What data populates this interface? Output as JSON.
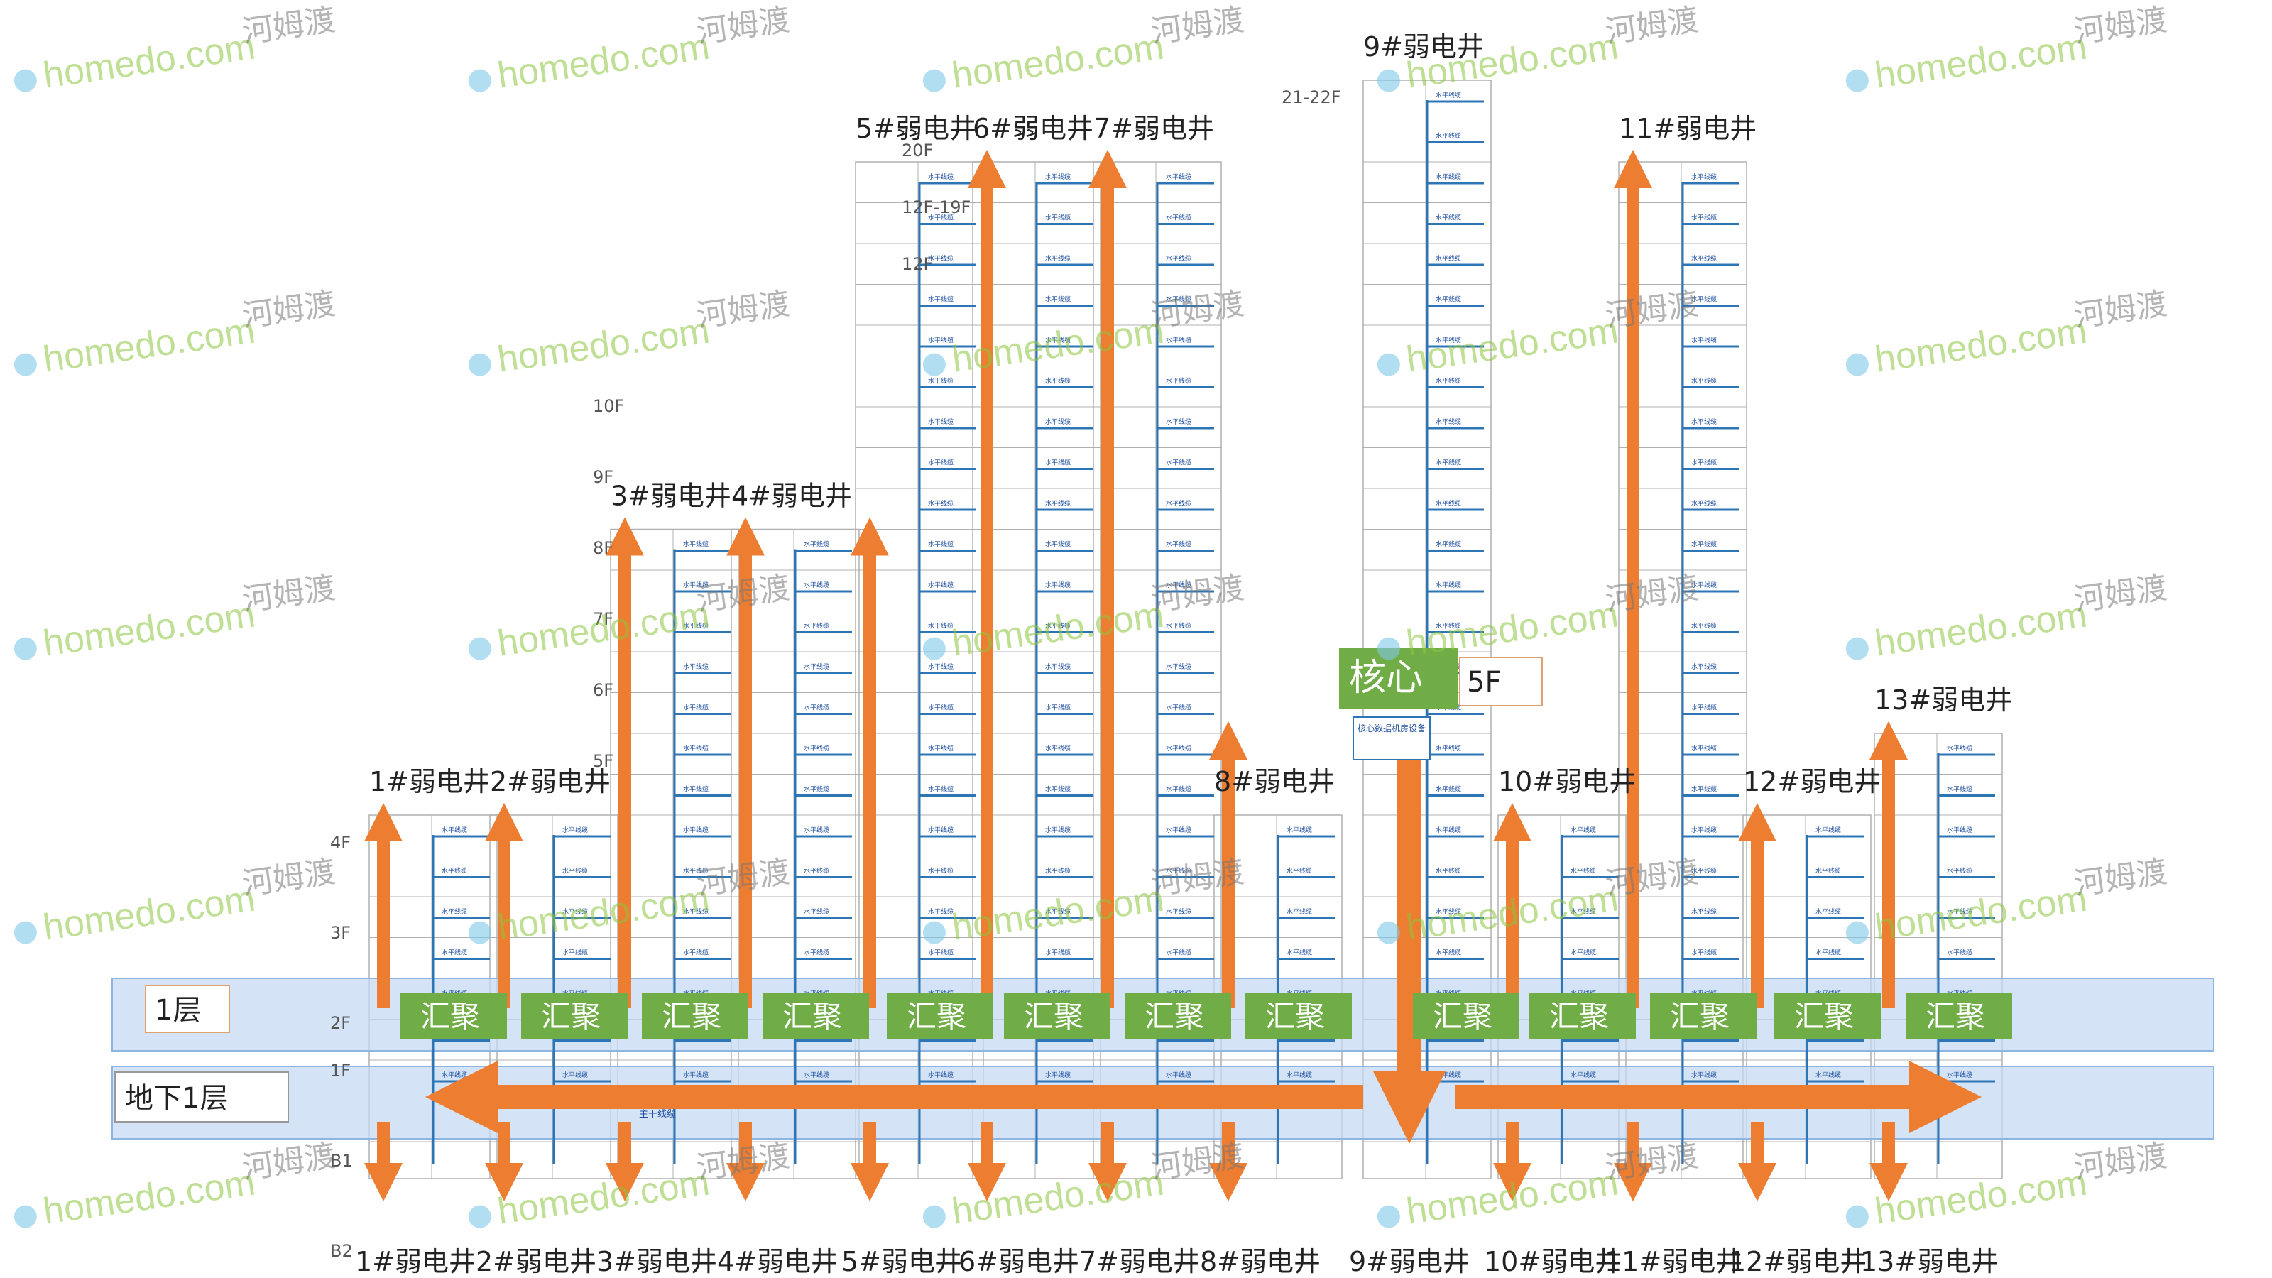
{
  "bands": {
    "ground": "1层",
    "basement": "地下1层"
  },
  "core": {
    "label": "核心",
    "floor": "5F",
    "equipment_note": "核心数据机房设备"
  },
  "aggregation_label": "汇聚",
  "wire_label": "水平线缆",
  "basement_note": "主干线缆",
  "shafts": [
    {
      "id": "1#弱电井",
      "label": "1#弱电井",
      "floors": 4,
      "arrow_top_floor": 4
    },
    {
      "id": "2#弱电井",
      "label": "2#弱电井",
      "floors": 4,
      "arrow_top_floor": 4
    },
    {
      "id": "3#弱电井",
      "label": "3#弱电井",
      "floors": 11,
      "arrow_top_floor": 11
    },
    {
      "id": "4#弱电井",
      "label": "4#弱电井",
      "floors": 11,
      "arrow_top_floor": 11
    },
    {
      "id": "5#弱电井",
      "label": "5#弱电井",
      "floors": 20,
      "arrow_top_floor": 11
    },
    {
      "id": "6#弱电井",
      "label": "6#弱电井",
      "floors": 20,
      "arrow_top_floor": 20
    },
    {
      "id": "7#弱电井",
      "label": "7#弱电井",
      "floors": 20,
      "arrow_top_floor": 20
    },
    {
      "id": "8#弱电井",
      "label": "8#弱电井",
      "floors": 4,
      "arrow_top_floor": 6
    },
    {
      "id": "9#弱电井",
      "label": "9#弱电井",
      "floors": 22,
      "arrow_top_floor": 0
    },
    {
      "id": "10#弱电井",
      "label": "10#弱电井",
      "floors": 4,
      "arrow_top_floor": 4
    },
    {
      "id": "11#弱电井",
      "label": "11#弱电井",
      "floors": 20,
      "arrow_top_floor": 20
    },
    {
      "id": "12#弱电井",
      "label": "12#弱电井",
      "floors": 4,
      "arrow_top_floor": 4
    },
    {
      "id": "13#弱电井",
      "label": "13#弱电井",
      "floors": 6,
      "arrow_top_floor": 6
    }
  ],
  "floor_ticks_left": [
    "4F",
    "3F",
    "2F",
    "1F",
    "B1",
    "B2"
  ],
  "floor_ticks_mid": [
    "10F",
    "9F",
    "8F",
    "7F",
    "6F",
    "5F"
  ],
  "floor_ticks_tall": [
    "20F",
    "12F-19F",
    "12F"
  ],
  "floor_ticks_9": "21-22F",
  "watermark": {
    "text": "homedo.com",
    "cn": "河姆渡"
  },
  "colors": {
    "orange": "#ed7d31",
    "green": "#70ad47",
    "band": "#c5d9f1",
    "blue_line": "#2e75b6",
    "grid": "#b0b0b0"
  }
}
